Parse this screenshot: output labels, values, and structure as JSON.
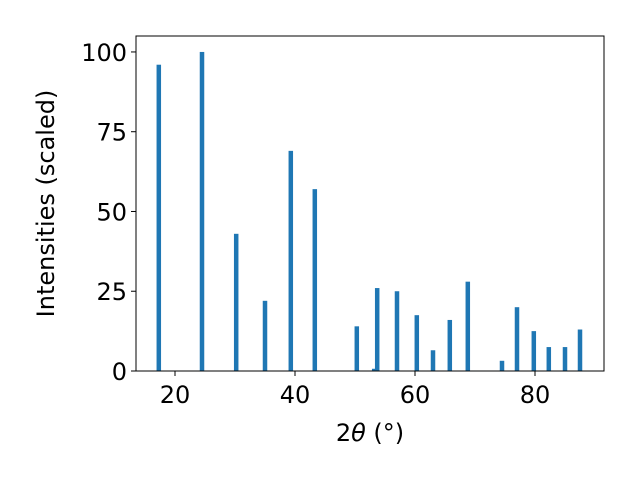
{
  "chart_data": {
    "type": "bar",
    "xlabel_prefix": "2",
    "xlabel_theta": "θ",
    "xlabel_unit": " (°)",
    "ylabel": "Intensities (scaled)",
    "xlim": [
      13.5,
      91.5
    ],
    "ylim": [
      0,
      105
    ],
    "x_ticks": [
      20,
      40,
      60,
      80
    ],
    "y_ticks": [
      0,
      25,
      50,
      75,
      100
    ],
    "bar_color": "#1f77b4",
    "grid": false,
    "bars": [
      {
        "x": 17.3,
        "y": 96
      },
      {
        "x": 24.5,
        "y": 100
      },
      {
        "x": 30.2,
        "y": 43
      },
      {
        "x": 35.0,
        "y": 22
      },
      {
        "x": 39.3,
        "y": 69
      },
      {
        "x": 43.3,
        "y": 57
      },
      {
        "x": 50.3,
        "y": 14
      },
      {
        "x": 53.2,
        "y": 0.7
      },
      {
        "x": 53.7,
        "y": 26
      },
      {
        "x": 57.0,
        "y": 25
      },
      {
        "x": 60.3,
        "y": 17.5
      },
      {
        "x": 63.0,
        "y": 6.5
      },
      {
        "x": 65.8,
        "y": 16
      },
      {
        "x": 68.8,
        "y": 28
      },
      {
        "x": 74.5,
        "y": 3.2
      },
      {
        "x": 77.0,
        "y": 20
      },
      {
        "x": 79.8,
        "y": 12.5
      },
      {
        "x": 82.3,
        "y": 7.5
      },
      {
        "x": 85.0,
        "y": 7.5
      },
      {
        "x": 87.5,
        "y": 13
      }
    ]
  }
}
